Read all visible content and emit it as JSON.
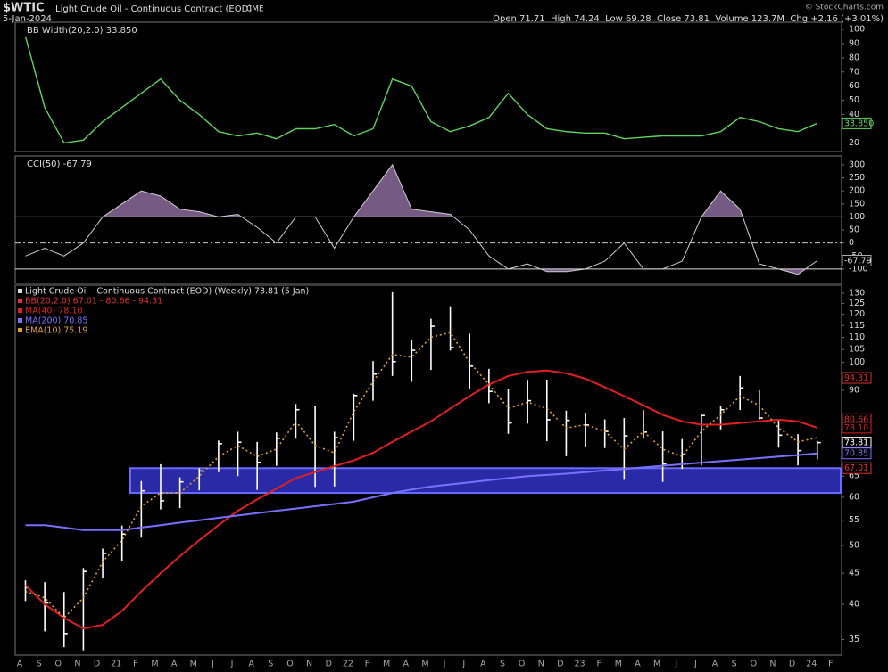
{
  "header": {
    "symbol": "$WTIC",
    "name": "Light Crude Oil - Continuous Contract (EOD)",
    "exchange": "CME",
    "date": "5-Jan-2024",
    "quote": "Open 71.71  High 74.24  Low 69.28  Close 73.81  Volume 123.7M  Chg +2.16 (+3.01%)",
    "credit": "© StockCharts.com"
  },
  "chart_data": [
    {
      "type": "line",
      "title": "BB Width(20,2.0) 33.850",
      "color": "#5fd35f",
      "values": [
        95,
        45,
        20,
        22,
        35,
        45,
        55,
        65,
        50,
        40,
        28,
        25,
        27,
        23,
        30,
        30,
        33,
        25,
        30,
        65,
        60,
        35,
        28,
        32,
        38,
        55,
        40,
        30,
        28,
        27,
        27,
        23,
        24,
        25,
        25,
        25,
        28,
        38,
        35,
        30,
        28,
        33.85,
        null
      ],
      "ylim": [
        14,
        105
      ],
      "yticks": [
        20,
        40,
        50,
        60,
        70,
        80,
        90,
        100
      ],
      "tag": {
        "value": 33.85,
        "label": "33.850"
      }
    },
    {
      "type": "area",
      "title": "CCI(50) -67.79",
      "color": "#cfcfcf",
      "fill": "#8a6a9a",
      "values": [
        -50,
        -20,
        -50,
        0,
        100,
        150,
        200,
        180,
        130,
        120,
        100,
        110,
        60,
        0,
        100,
        100,
        -20,
        100,
        200,
        300,
        130,
        120,
        110,
        50,
        -50,
        -100,
        -80,
        -110,
        -110,
        -100,
        -70,
        0,
        -100,
        -100,
        -70,
        100,
        200,
        130,
        -80,
        -100,
        -120,
        -67.79,
        null
      ],
      "ylim": [
        -155,
        334
      ],
      "yticks": [
        300,
        250,
        200,
        150,
        100,
        50,
        0,
        -50,
        -100
      ],
      "ref_lines": [
        100,
        -100
      ],
      "zero_line": 0,
      "tag": {
        "value": -67.79,
        "label": "-67.79"
      }
    },
    {
      "type": "hlc",
      "log_scale": true,
      "categories": [
        "A",
        "S",
        "O",
        "N",
        "D",
        "21",
        "F",
        "M",
        "A",
        "M",
        "J",
        "J",
        "A",
        "S",
        "O",
        "N",
        "D",
        "22",
        "F",
        "M",
        "A",
        "M",
        "J",
        "J",
        "A",
        "S",
        "O",
        "N",
        "D",
        "23",
        "F",
        "M",
        "A",
        "M",
        "J",
        "J",
        "A",
        "S",
        "O",
        "N",
        "D",
        "24",
        "F"
      ],
      "series": [
        {
          "name": "Light Crude Oil - Continuous Contract (EOD) (Weekly) 73.81 (5 Jan)",
          "color": "#ffffff",
          "high": [
            43.8,
            43.5,
            41.9,
            45.9,
            49.4,
            53.9,
            63.8,
            68.0,
            64.7,
            67.0,
            74.4,
            76.9,
            74.0,
            76.7,
            85.4,
            84.9,
            76.9,
            88.8,
            100.5,
            130.5,
            109.0,
            118.0,
            123.7,
            111.5,
            97.6,
            90.4,
            93.6,
            93.7,
            83.3,
            82.7,
            80.6,
            81.0,
            83.5,
            77.0,
            74.8,
            82.0,
            84.9,
            95.0,
            90.0,
            80.5,
            76.2,
            74.24,
            null
          ],
          "low": [
            40.5,
            36.1,
            34.0,
            33.6,
            44.2,
            47.2,
            51.5,
            57.3,
            57.6,
            61.6,
            66.0,
            65.0,
            61.7,
            67.6,
            74.9,
            62.4,
            62.5,
            74.3,
            86.5,
            95.0,
            92.9,
            97.2,
            104.6,
            90.6,
            85.7,
            76.3,
            79.3,
            74.2,
            70.1,
            72.5,
            72.3,
            64.1,
            74.9,
            63.6,
            66.8,
            67.7,
            77.6,
            83.5,
            80.6,
            72.4,
            67.7,
            69.28,
            null
          ],
          "close": [
            42.6,
            40.2,
            35.8,
            45.3,
            48.5,
            52.2,
            61.5,
            59.2,
            63.6,
            66.3,
            73.5,
            73.9,
            68.5,
            75.0,
            83.6,
            66.2,
            75.2,
            88.2,
            95.7,
            100.3,
            104.7,
            114.7,
            105.8,
            98.6,
            89.6,
            79.5,
            86.5,
            80.5,
            80.3,
            78.9,
            77.0,
            75.7,
            76.8,
            68.1,
            70.6,
            81.8,
            83.6,
            90.8,
            81.0,
            75.9,
            71.6,
            73.81,
            null
          ]
        },
        {
          "name": "MA(40) 78.10",
          "color": "#e02020",
          "values": [
            43,
            40,
            38,
            36.5,
            37,
            39,
            42,
            45,
            48,
            51,
            54,
            57,
            59.5,
            62,
            64.5,
            66,
            67.5,
            69,
            71,
            74,
            77,
            80,
            84,
            88,
            92,
            95,
            96.5,
            97,
            96,
            94,
            91,
            88,
            85,
            82,
            80,
            79,
            79,
            79.5,
            80,
            80.5,
            80,
            78.1,
            null
          ]
        },
        {
          "name": "MA(200) 70.85",
          "color": "#7a70ff",
          "values": [
            54,
            54,
            53.5,
            53,
            53,
            53,
            53.5,
            54,
            54.5,
            55,
            55.5,
            56,
            56.5,
            57,
            57.5,
            58,
            58.5,
            59,
            60,
            61,
            61.8,
            62.5,
            63,
            63.5,
            64,
            64.5,
            65,
            65.3,
            65.6,
            66,
            66.4,
            66.8,
            67.2,
            67.6,
            68,
            68.4,
            68.8,
            69.2,
            69.6,
            70,
            70.4,
            70.85,
            null
          ]
        },
        {
          "name": "EMA(10) 75.19",
          "color": "#e0a030",
          "dashed": true,
          "values": [
            42,
            41,
            38,
            41,
            47,
            51,
            58,
            61,
            61,
            65,
            70,
            73,
            70,
            72,
            80,
            73,
            71,
            83,
            93,
            103,
            102,
            110,
            112,
            100,
            92,
            84,
            86,
            84,
            78,
            79,
            77,
            72,
            77,
            72,
            70,
            77,
            82,
            88,
            85,
            78,
            74,
            75.19,
            null
          ]
        }
      ],
      "bands": {
        "name": "BB(20,2.0) 67.01 - 80.66 - 94.31",
        "color": "#e03030"
      },
      "zone": {
        "low": 61,
        "high": 67,
        "color": "#3434d0"
      },
      "ylim": [
        33,
        134
      ],
      "yticks": [
        35,
        40,
        45,
        50,
        55,
        60,
        65,
        90,
        100,
        105,
        110,
        115,
        120,
        125,
        130
      ],
      "tags": [
        {
          "value": 94.31,
          "label": "94.31",
          "color": "#e03030"
        },
        {
          "value": 80.66,
          "label": "80.66",
          "color": "#e03030"
        },
        {
          "value": 78.1,
          "label": "78.10",
          "color": "#e02020"
        },
        {
          "value": 73.81,
          "label": "73.81",
          "color": "#ffffff"
        },
        {
          "value": 70.85,
          "label": "70.85",
          "color": "#7a70ff"
        },
        {
          "value": 67.01,
          "label": "67.01",
          "color": "#e03030"
        }
      ]
    }
  ]
}
